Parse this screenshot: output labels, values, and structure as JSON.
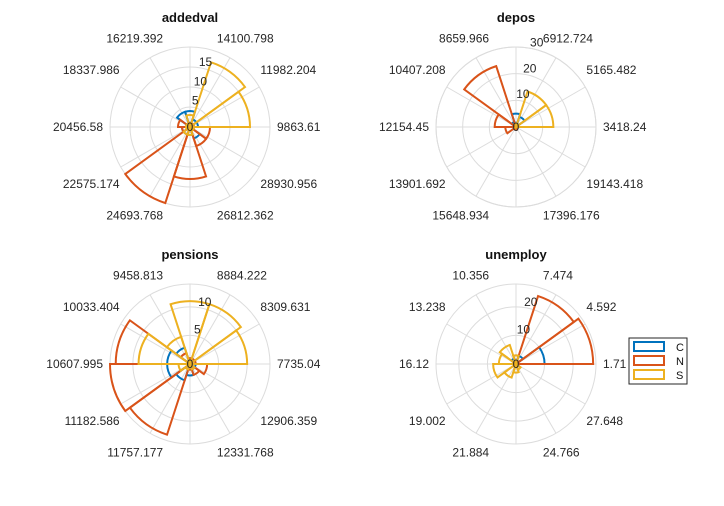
{
  "chart_data": [
    {
      "type": "polar-histogram",
      "title": "addedval",
      "rlim": [
        0,
        20
      ],
      "rticks": [
        5,
        10,
        15
      ],
      "angle_labels": [
        "9863.61",
        "11982.204",
        "14100.798",
        "16219.392",
        "18337.986",
        "20456.58",
        "22575.174",
        "24693.768",
        "26812.362",
        "28930.956"
      ],
      "series": [
        {
          "name": "C",
          "values": [
            2,
            2,
            4,
            4,
            1,
            2,
            2,
            2,
            3,
            1
          ]
        },
        {
          "name": "N",
          "values": [
            1,
            1,
            1,
            1,
            3,
            2,
            20,
            13,
            5,
            5
          ]
        },
        {
          "name": "S",
          "values": [
            15,
            17,
            3,
            1,
            1,
            1,
            2,
            2,
            1,
            1
          ]
        }
      ]
    },
    {
      "type": "polar-histogram",
      "title": "depos",
      "rlim": [
        0,
        30
      ],
      "rticks": [
        10,
        20,
        30
      ],
      "angle_labels": [
        "3418.24",
        "5165.482",
        "6912.724",
        "8659.966",
        "10407.208",
        "12154.45",
        "13901.692",
        "15648.934",
        "17396.176",
        "19143.418"
      ],
      "series": [
        {
          "name": "C",
          "values": [
            1,
            4,
            5,
            2,
            1,
            1,
            0,
            0,
            0,
            0
          ]
        },
        {
          "name": "N",
          "values": [
            1,
            1,
            1,
            24,
            8,
            4,
            0,
            1,
            0,
            0
          ]
        },
        {
          "name": "S",
          "values": [
            14,
            14,
            1,
            0,
            0,
            0,
            0,
            0,
            0,
            0
          ]
        }
      ]
    },
    {
      "type": "polar-histogram",
      "title": "pensions",
      "rlim": [
        0,
        14
      ],
      "rticks": [
        5,
        10
      ],
      "angle_labels": [
        "7735.04",
        "8309.631",
        "8884.222",
        "9458.813",
        "10033.404",
        "10607.995",
        "11182.586",
        "11757.177",
        "12331.768",
        "12906.359"
      ],
      "series": [
        {
          "name": "C",
          "values": [
            1,
            1,
            1,
            3,
            4,
            4,
            3,
            2,
            1,
            1
          ]
        },
        {
          "name": "N",
          "values": [
            1,
            1,
            1,
            2,
            13,
            14,
            13,
            1,
            2,
            3
          ]
        },
        {
          "name": "S",
          "values": [
            10,
            11,
            11,
            5,
            9,
            2,
            1,
            0,
            1,
            0
          ]
        }
      ]
    },
    {
      "type": "polar-histogram",
      "title": "unemploy",
      "rlim": [
        0,
        28
      ],
      "rticks": [
        10,
        20
      ],
      "angle_labels": [
        "1.71",
        "4.592",
        "7.474",
        "10.356",
        "13.238",
        "16.12",
        "19.002",
        "21.884",
        "24.766",
        "27.648"
      ],
      "series": [
        {
          "name": "C",
          "values": [
            10,
            3,
            1,
            2,
            1,
            0,
            0,
            0,
            0,
            1
          ]
        },
        {
          "name": "N",
          "values": [
            27,
            25,
            3,
            1,
            1,
            0,
            0,
            0,
            0,
            0
          ]
        },
        {
          "name": "S",
          "values": [
            0,
            0,
            3,
            7,
            6,
            8,
            5,
            3,
            2,
            0
          ]
        }
      ]
    }
  ],
  "legend": {
    "position": "right",
    "entries": [
      {
        "label": "C",
        "color": "#0072BD"
      },
      {
        "label": "N",
        "color": "#D95319"
      },
      {
        "label": "S",
        "color": "#EDB120"
      }
    ]
  }
}
